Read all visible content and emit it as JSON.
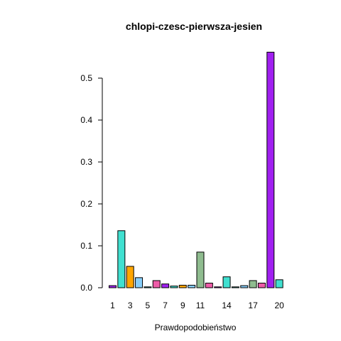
{
  "chart_data": {
    "type": "bar",
    "title": "chlopi-czesc-pierwsza-jesien",
    "xlabel": "Prawdopodobieństwo",
    "ylabel": "",
    "ylim": [
      0,
      0.56
    ],
    "yticks": [
      "0.0",
      "0.1",
      "0.2",
      "0.3",
      "0.4",
      "0.5"
    ],
    "x_tick_labels": [
      {
        "bar": 1,
        "label": "1"
      },
      {
        "bar": 3,
        "label": "3"
      },
      {
        "bar": 5,
        "label": "5"
      },
      {
        "bar": 7,
        "label": "7"
      },
      {
        "bar": 9,
        "label": "9"
      },
      {
        "bar": 11,
        "label": "11"
      },
      {
        "bar": 14,
        "label": "14"
      },
      {
        "bar": 17,
        "label": "17"
      },
      {
        "bar": 20,
        "label": "20"
      }
    ],
    "categories": [
      "1",
      "2",
      "3",
      "4",
      "5",
      "6",
      "7",
      "8",
      "9",
      "10",
      "11",
      "12",
      "13",
      "14",
      "15",
      "16",
      "17",
      "18",
      "19",
      "20"
    ],
    "values": [
      0.005,
      0.136,
      0.051,
      0.024,
      0.002,
      0.017,
      0.009,
      0.004,
      0.006,
      0.006,
      0.085,
      0.011,
      0.002,
      0.026,
      0.002,
      0.005,
      0.017,
      0.011,
      0.562,
      0.019
    ],
    "colors": [
      "#a020f0",
      "#40e0d0",
      "#ffa500",
      "#87cefa",
      "#40e0d0",
      "#ee5ca8",
      "#a020f0",
      "#40e0d0",
      "#ffa500",
      "#87cefa",
      "#8fbc8f",
      "#ee5ca8",
      "#a020f0",
      "#40e0d0",
      "#40e0d0",
      "#87cefa",
      "#8fbc8f",
      "#ee5ca8",
      "#a020f0",
      "#40e0d0"
    ],
    "grid": false,
    "legend": "none"
  }
}
